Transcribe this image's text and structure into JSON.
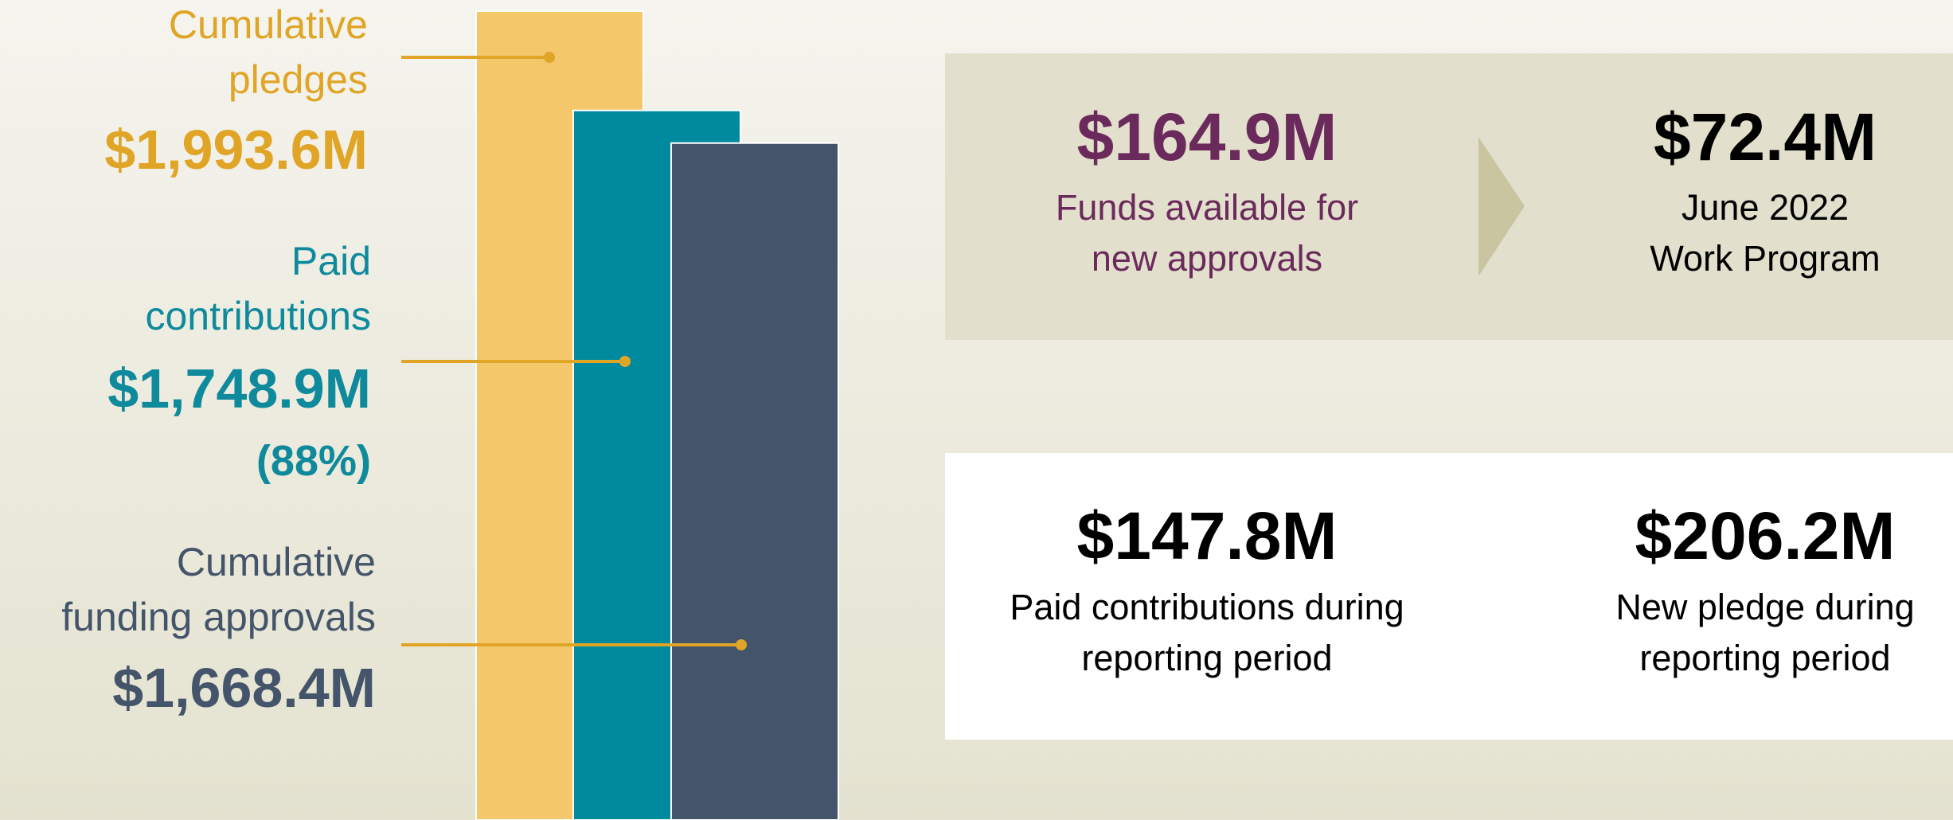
{
  "chart_data": {
    "type": "bar",
    "categories": [
      "Cumulative\npledges",
      "Paid\ncontributions",
      "Cumulative\nfunding approvals"
    ],
    "values": [
      1993.6,
      1748.9,
      1668.4
    ],
    "value_labels": [
      "$1,993.6M",
      "$1,748.9M",
      "$1,668.4M"
    ],
    "value_notes": [
      null,
      "(88%)",
      null
    ],
    "colors": [
      "#f3c76a",
      "#008a9e",
      "#44546a"
    ],
    "label_colors": [
      "#e0a526",
      "#0e8a9c",
      "#44546a"
    ]
  },
  "panels": [
    {
      "stats": [
        {
          "value": "$164.9M",
          "caption": "Funds available for\nnew approvals"
        },
        {
          "value": "$72.4M",
          "caption": "June 2022\nWork Program"
        }
      ]
    },
    {
      "stats": [
        {
          "value": "$147.8M",
          "caption": "Paid contributions during\nreporting period"
        },
        {
          "value": "$206.2M",
          "caption": "New pledge during\nreporting period"
        }
      ]
    }
  ]
}
